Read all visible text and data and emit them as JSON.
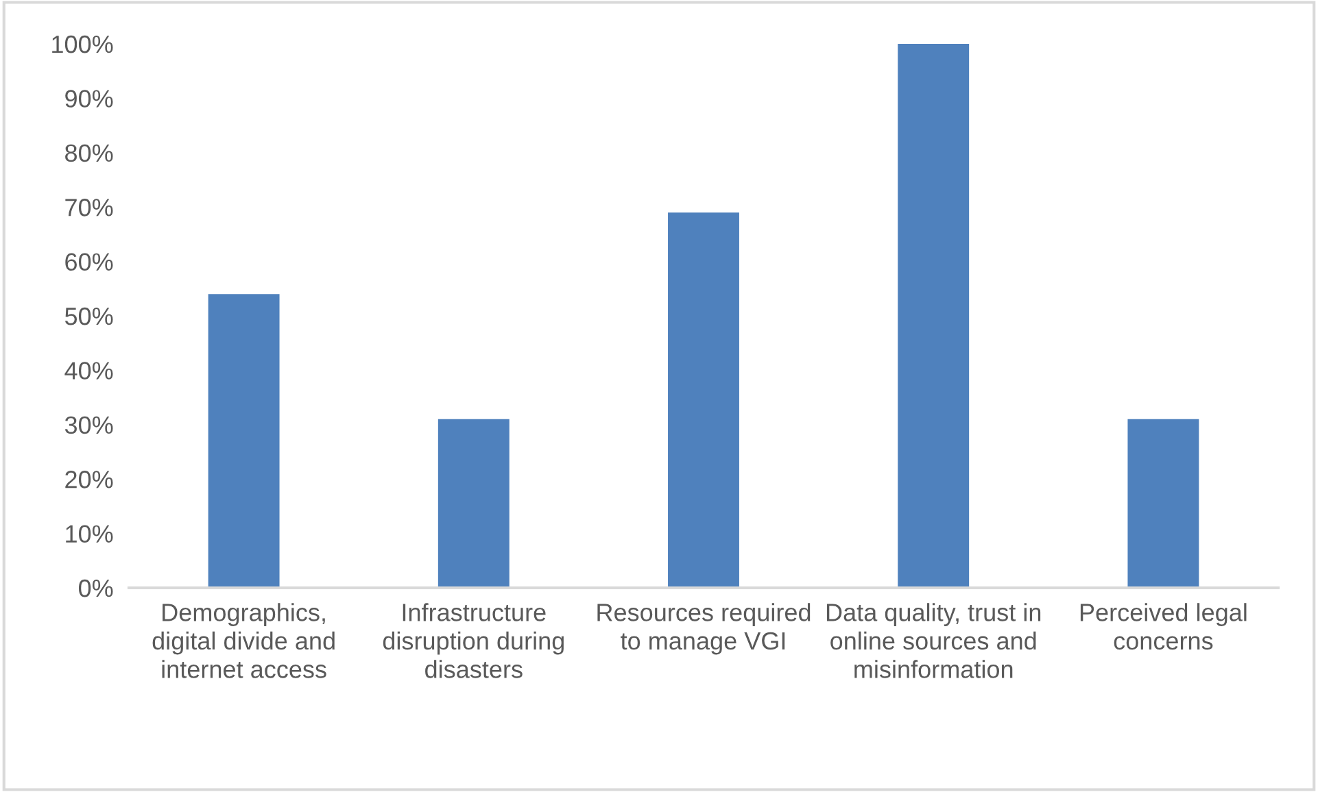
{
  "chart_data": {
    "type": "bar",
    "categories": [
      "Demographics, digital divide and internet access",
      "Infrastructure disruption during disasters",
      "Resources required to manage VGI",
      "Data quality, trust in online sources and misinformation",
      "Perceived legal concerns"
    ],
    "values": [
      54,
      31,
      69,
      100,
      31
    ],
    "color": "#4f81bd",
    "ylim": [
      0,
      100
    ],
    "yticks": [
      {
        "value": 0,
        "label": "0%"
      },
      {
        "value": 10,
        "label": "10%"
      },
      {
        "value": 20,
        "label": "20%"
      },
      {
        "value": 30,
        "label": "30%"
      },
      {
        "value": 40,
        "label": "40%"
      },
      {
        "value": 50,
        "label": "50%"
      },
      {
        "value": 60,
        "label": "60%"
      },
      {
        "value": 70,
        "label": "70%"
      },
      {
        "value": 80,
        "label": "80%"
      },
      {
        "value": 90,
        "label": "90%"
      },
      {
        "value": 100,
        "label": "100%"
      }
    ],
    "grid": false,
    "legend": false
  }
}
